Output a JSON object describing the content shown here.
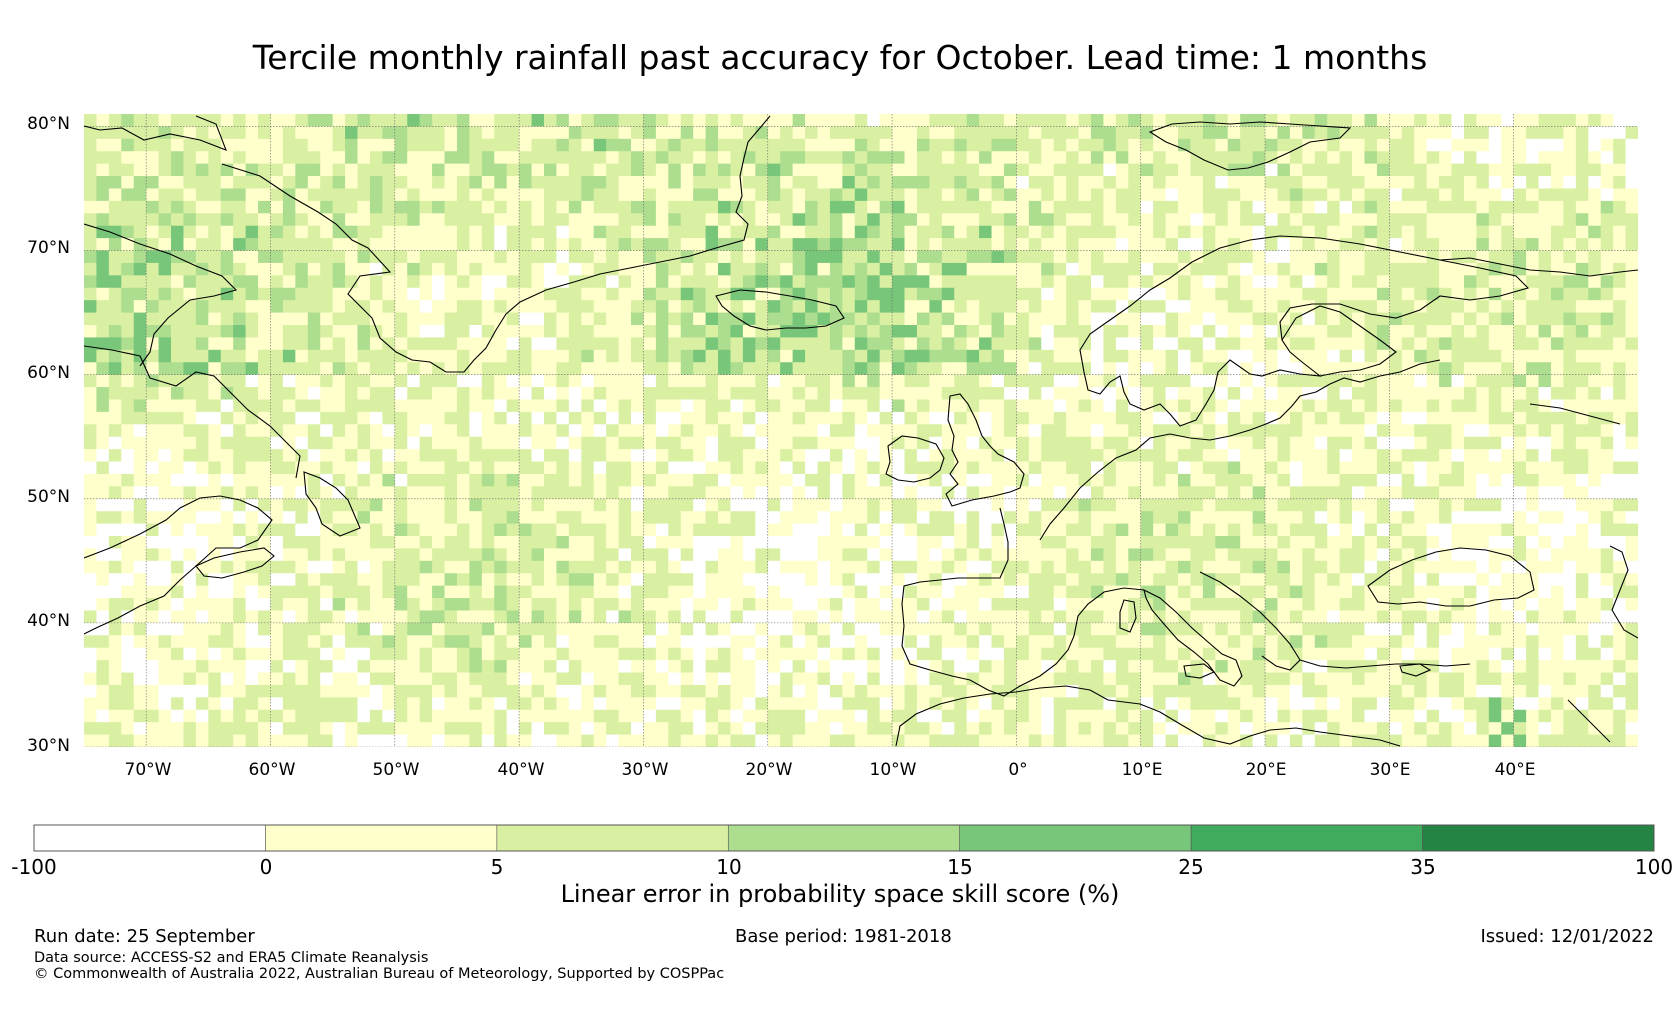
{
  "title": "Tercile monthly rainfall past accuracy for October. Lead time: 1 months",
  "map": {
    "lat_labels": [
      "80°N",
      "70°N",
      "60°N",
      "50°N",
      "40°N",
      "30°N"
    ],
    "lat_values": [
      80,
      70,
      60,
      50,
      40,
      30
    ],
    "lon_labels": [
      "70°W",
      "60°W",
      "50°W",
      "40°W",
      "30°W",
      "20°W",
      "10°W",
      "0°",
      "10°E",
      "20°E",
      "30°E",
      "40°E"
    ],
    "lon_values": [
      -70,
      -60,
      -50,
      -40,
      -30,
      -20,
      -10,
      0,
      10,
      20,
      30,
      40
    ],
    "extent": {
      "lon_min": -75,
      "lon_max": 50,
      "lat_min": 30,
      "lat_max": 81
    }
  },
  "colorbar": {
    "bounds": [
      "-100",
      "0",
      "5",
      "10",
      "15",
      "25",
      "35",
      "100"
    ],
    "colors": [
      "#ffffff",
      "#ffffcc",
      "#d9f0a3",
      "#addd8e",
      "#78c679",
      "#41ab5d",
      "#238443"
    ],
    "label": "Linear error in probability space skill score (%)"
  },
  "footer": {
    "run_date": "Run date: 25 September",
    "base_period": "Base period: 1981-2018",
    "issued": "Issued: 12/01/2022",
    "data_source": "Data source: ACCESS-S2 and ERA5 Climate Reanalysis",
    "copyright": "© Commonwealth of Australia 2022, Australian Bureau of Meteorology, Supported by COSPPac"
  }
}
